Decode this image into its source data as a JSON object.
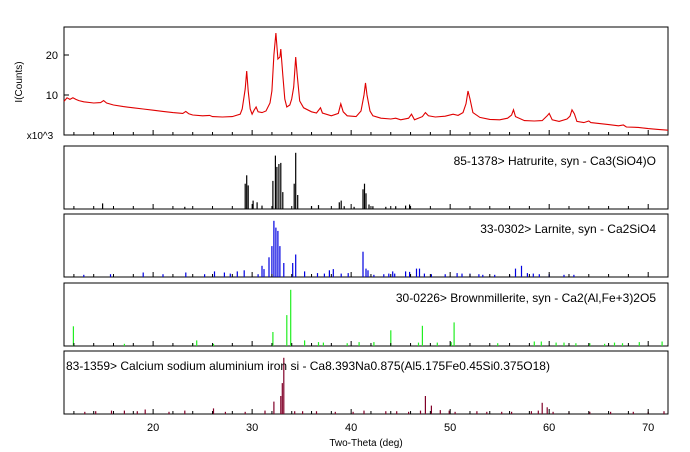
{
  "chart_data": {
    "type": "line",
    "xlabel": "Two-Theta (deg)",
    "ylabel": "I(Counts)",
    "y_multiplier": "x10^3",
    "xlim": [
      11,
      72
    ],
    "x_ticks": [
      20,
      30,
      40,
      50,
      60,
      70
    ],
    "y_ticks": [
      10,
      20
    ],
    "ylim": [
      0,
      27
    ],
    "pattern": {
      "color": "#e00000",
      "points": [
        [
          11.0,
          8.4
        ],
        [
          11.3,
          9.3
        ],
        [
          11.6,
          8.9
        ],
        [
          11.9,
          9.3
        ],
        [
          12.2,
          8.9
        ],
        [
          12.5,
          8.6
        ],
        [
          13.0,
          8.3
        ],
        [
          14.0,
          8.0
        ],
        [
          14.7,
          8.1
        ],
        [
          15.0,
          8.6
        ],
        [
          15.3,
          8.0
        ],
        [
          16.0,
          7.5
        ],
        [
          17.0,
          7.1
        ],
        [
          18.0,
          6.8
        ],
        [
          19.0,
          6.5
        ],
        [
          20.0,
          6.2
        ],
        [
          21.0,
          5.9
        ],
        [
          22.0,
          5.6
        ],
        [
          23.0,
          5.4
        ],
        [
          23.3,
          5.9
        ],
        [
          23.6,
          5.3
        ],
        [
          24.0,
          5.0
        ],
        [
          25.0,
          4.8
        ],
        [
          25.7,
          4.9
        ],
        [
          26.0,
          4.6
        ],
        [
          27.0,
          4.5
        ],
        [
          28.0,
          4.6
        ],
        [
          28.8,
          5.2
        ],
        [
          29.0,
          6.5
        ],
        [
          29.3,
          11.5
        ],
        [
          29.45,
          16.0
        ],
        [
          29.6,
          11.0
        ],
        [
          29.8,
          6.5
        ],
        [
          30.0,
          5.2
        ],
        [
          30.2,
          6.2
        ],
        [
          30.4,
          7.0
        ],
        [
          30.6,
          5.8
        ],
        [
          31.0,
          5.6
        ],
        [
          31.4,
          6.0
        ],
        [
          31.8,
          8.0
        ],
        [
          32.0,
          11.0
        ],
        [
          32.2,
          20.0
        ],
        [
          32.4,
          25.5
        ],
        [
          32.6,
          19.0
        ],
        [
          32.8,
          19.5
        ],
        [
          32.9,
          21.5
        ],
        [
          33.1,
          15.0
        ],
        [
          33.3,
          9.0
        ],
        [
          33.5,
          7.0
        ],
        [
          33.8,
          7.5
        ],
        [
          34.0,
          9.0
        ],
        [
          34.2,
          12.0
        ],
        [
          34.4,
          19.5
        ],
        [
          34.55,
          15.0
        ],
        [
          34.8,
          8.5
        ],
        [
          35.2,
          6.8
        ],
        [
          36.0,
          5.8
        ],
        [
          36.5,
          5.5
        ],
        [
          36.9,
          6.8
        ],
        [
          37.1,
          5.5
        ],
        [
          38.0,
          4.8
        ],
        [
          38.7,
          5.4
        ],
        [
          38.95,
          7.8
        ],
        [
          39.2,
          5.8
        ],
        [
          39.6,
          4.8
        ],
        [
          40.5,
          4.6
        ],
        [
          41.0,
          6.0
        ],
        [
          41.3,
          10.0
        ],
        [
          41.45,
          13.0
        ],
        [
          41.6,
          10.0
        ],
        [
          41.9,
          6.0
        ],
        [
          42.2,
          4.8
        ],
        [
          43.0,
          4.2
        ],
        [
          44.0,
          4.0
        ],
        [
          44.5,
          4.2
        ],
        [
          45.0,
          3.8
        ],
        [
          45.8,
          4.2
        ],
        [
          46.1,
          5.2
        ],
        [
          46.4,
          3.8
        ],
        [
          47.2,
          4.6
        ],
        [
          47.5,
          5.6
        ],
        [
          47.8,
          4.8
        ],
        [
          48.5,
          4.5
        ],
        [
          49.5,
          4.7
        ],
        [
          50.3,
          5.2
        ],
        [
          50.8,
          4.9
        ],
        [
          51.3,
          5.6
        ],
        [
          51.6,
          7.8
        ],
        [
          51.8,
          11.0
        ],
        [
          52.0,
          9.0
        ],
        [
          52.3,
          5.6
        ],
        [
          53.0,
          4.4
        ],
        [
          54.0,
          3.9
        ],
        [
          55.0,
          3.8
        ],
        [
          55.8,
          4.2
        ],
        [
          56.2,
          5.0
        ],
        [
          56.4,
          6.3
        ],
        [
          56.6,
          4.6
        ],
        [
          57.5,
          3.6
        ],
        [
          58.5,
          3.5
        ],
        [
          59.3,
          3.6
        ],
        [
          59.8,
          4.8
        ],
        [
          60.0,
          5.4
        ],
        [
          60.3,
          3.8
        ],
        [
          61.0,
          3.4
        ],
        [
          61.8,
          4.0
        ],
        [
          62.1,
          4.7
        ],
        [
          62.3,
          6.3
        ],
        [
          62.55,
          5.3
        ],
        [
          62.8,
          3.4
        ],
        [
          63.5,
          3.1
        ],
        [
          64.0,
          3.5
        ],
        [
          64.2,
          3.1
        ],
        [
          66.0,
          2.6
        ],
        [
          67.0,
          2.3
        ],
        [
          67.5,
          2.5
        ],
        [
          67.8,
          2.0
        ],
        [
          69.0,
          1.9
        ],
        [
          70.0,
          1.6
        ],
        [
          71.0,
          1.4
        ],
        [
          72.0,
          1.2
        ]
      ]
    },
    "references": [
      {
        "label": "85-1378> Hatrurite, syn - Ca3(SiO4)O",
        "color": "#000000",
        "ylim": [
          0,
          1.05
        ],
        "sticks": [
          [
            14.9,
            0.1
          ],
          [
            23.2,
            0.04
          ],
          [
            29.3,
            0.45
          ],
          [
            29.45,
            0.6
          ],
          [
            29.6,
            0.42
          ],
          [
            30.1,
            0.15
          ],
          [
            30.5,
            0.12
          ],
          [
            31.0,
            0.06
          ],
          [
            32.1,
            0.5
          ],
          [
            32.35,
            0.95
          ],
          [
            32.5,
            0.75
          ],
          [
            32.7,
            0.8
          ],
          [
            32.9,
            0.82
          ],
          [
            33.1,
            0.3
          ],
          [
            34.25,
            0.45
          ],
          [
            34.4,
            1.0
          ],
          [
            34.6,
            0.25
          ],
          [
            36.0,
            0.05
          ],
          [
            36.7,
            0.07
          ],
          [
            38.8,
            0.12
          ],
          [
            39.0,
            0.15
          ],
          [
            39.3,
            0.05
          ],
          [
            40.3,
            0.04
          ],
          [
            41.2,
            0.35
          ],
          [
            41.35,
            0.45
          ],
          [
            41.5,
            0.28
          ],
          [
            41.8,
            0.08
          ],
          [
            42.2,
            0.05
          ],
          [
            43.5,
            0.04
          ],
          [
            44.5,
            0.05
          ],
          [
            45.5,
            0.06
          ],
          [
            45.9,
            0.08
          ]
        ]
      },
      {
        "label": "33-0302> Larnite, syn - Ca2SiO4",
        "color": "#0000e0",
        "ylim": [
          0,
          1.05
        ],
        "sticks": [
          [
            13.0,
            0.04
          ],
          [
            15.7,
            0.05
          ],
          [
            19.0,
            0.08
          ],
          [
            21.0,
            0.05
          ],
          [
            23.3,
            0.08
          ],
          [
            25.2,
            0.05
          ],
          [
            26.2,
            0.1
          ],
          [
            27.2,
            0.08
          ],
          [
            27.8,
            0.06
          ],
          [
            28.5,
            0.1
          ],
          [
            29.2,
            0.12
          ],
          [
            30.6,
            0.05
          ],
          [
            31.0,
            0.2
          ],
          [
            31.2,
            0.14
          ],
          [
            31.7,
            0.35
          ],
          [
            32.0,
            0.55
          ],
          [
            32.2,
            1.0
          ],
          [
            32.4,
            0.88
          ],
          [
            32.6,
            0.82
          ],
          [
            32.8,
            0.55
          ],
          [
            33.2,
            0.25
          ],
          [
            34.1,
            0.25
          ],
          [
            34.4,
            0.4
          ],
          [
            35.3,
            0.1
          ],
          [
            36.6,
            0.07
          ],
          [
            37.3,
            0.06
          ],
          [
            37.8,
            0.12
          ],
          [
            38.2,
            0.14
          ],
          [
            39.0,
            0.06
          ],
          [
            39.7,
            0.07
          ],
          [
            41.2,
            0.45
          ],
          [
            41.5,
            0.15
          ],
          [
            41.7,
            0.12
          ],
          [
            42.3,
            0.04
          ],
          [
            43.3,
            0.05
          ],
          [
            43.8,
            0.06
          ],
          [
            44.2,
            0.1
          ],
          [
            44.4,
            0.06
          ],
          [
            45.5,
            0.1
          ],
          [
            45.9,
            0.09
          ],
          [
            46.6,
            0.15
          ],
          [
            46.9,
            0.15
          ],
          [
            47.4,
            0.06
          ],
          [
            48.1,
            0.05
          ],
          [
            49.5,
            0.05
          ],
          [
            50.7,
            0.07
          ],
          [
            51.2,
            0.06
          ],
          [
            52.0,
            0.06
          ],
          [
            52.9,
            0.05
          ],
          [
            53.3,
            0.04
          ],
          [
            54.5,
            0.04
          ],
          [
            56.0,
            0.04
          ],
          [
            56.6,
            0.15
          ],
          [
            57.2,
            0.2
          ],
          [
            57.8,
            0.07
          ],
          [
            58.4,
            0.06
          ],
          [
            59.0,
            0.05
          ],
          [
            60.0,
            0.05
          ],
          [
            61.5,
            0.04
          ],
          [
            62.5,
            0.04
          ]
        ]
      },
      {
        "label": "30-0226> Brownmillerite, syn - Ca2(Al,Fe+3)2O5",
        "color": "#22ee22",
        "ylim": [
          0,
          1.05
        ],
        "sticks": [
          [
            11.95,
            0.35
          ],
          [
            17.1,
            0.04
          ],
          [
            24.0,
            0.05
          ],
          [
            24.4,
            0.1
          ],
          [
            26.1,
            0.04
          ],
          [
            32.1,
            0.25
          ],
          [
            33.5,
            0.55
          ],
          [
            33.9,
            1.0
          ],
          [
            35.3,
            0.1
          ],
          [
            36.7,
            0.07
          ],
          [
            37.2,
            0.06
          ],
          [
            39.6,
            0.05
          ],
          [
            40.8,
            0.07
          ],
          [
            42.3,
            0.07
          ],
          [
            44.0,
            0.28
          ],
          [
            46.8,
            0.06
          ],
          [
            47.2,
            0.36
          ],
          [
            48.7,
            0.06
          ],
          [
            50.1,
            0.07
          ],
          [
            50.4,
            0.42
          ],
          [
            54.8,
            0.05
          ],
          [
            58.5,
            0.08
          ],
          [
            59.2,
            0.08
          ],
          [
            60.7,
            0.06
          ],
          [
            61.5,
            0.06
          ],
          [
            62.7,
            0.05
          ],
          [
            64.1,
            0.05
          ],
          [
            65.6,
            0.04
          ],
          [
            66.6,
            0.06
          ],
          [
            67.4,
            0.05
          ],
          [
            69.1,
            0.07
          ],
          [
            71.4,
            0.08
          ]
        ]
      },
      {
        "label": "83-1359> Calcium sodium aluminium iron si - Ca8.393Na0.875(Al5.175Fe0.45Si0.375O18)",
        "color": "#800028",
        "ylim": [
          0,
          1.05
        ],
        "sticks": [
          [
            13.1,
            0.04
          ],
          [
            14.2,
            0.05
          ],
          [
            15.8,
            0.06
          ],
          [
            17.1,
            0.06
          ],
          [
            18.4,
            0.05
          ],
          [
            19.2,
            0.08
          ],
          [
            21.6,
            0.04
          ],
          [
            23.2,
            0.06
          ],
          [
            26.1,
            0.1
          ],
          [
            27.3,
            0.04
          ],
          [
            29.3,
            0.04
          ],
          [
            31.3,
            0.06
          ],
          [
            32.2,
            0.22
          ],
          [
            32.9,
            0.32
          ],
          [
            33.05,
            0.55
          ],
          [
            33.2,
            1.0
          ],
          [
            34.3,
            0.05
          ],
          [
            35.1,
            0.05
          ],
          [
            36.5,
            0.05
          ],
          [
            38.4,
            0.04
          ],
          [
            40.2,
            0.04
          ],
          [
            41.3,
            0.06
          ],
          [
            43.5,
            0.05
          ],
          [
            44.6,
            0.05
          ],
          [
            45.8,
            0.04
          ],
          [
            47.0,
            0.06
          ],
          [
            47.5,
            0.32
          ],
          [
            48.1,
            0.15
          ],
          [
            49.0,
            0.07
          ],
          [
            49.9,
            0.06
          ],
          [
            50.5,
            0.04
          ],
          [
            52.7,
            0.05
          ],
          [
            53.7,
            0.04
          ],
          [
            55.2,
            0.04
          ],
          [
            56.2,
            0.04
          ],
          [
            58.2,
            0.05
          ],
          [
            58.9,
            0.06
          ],
          [
            59.3,
            0.2
          ],
          [
            59.8,
            0.12
          ],
          [
            60.4,
            0.04
          ],
          [
            62.0,
            0.04
          ],
          [
            64.1,
            0.04
          ],
          [
            66.2,
            0.04
          ],
          [
            68.5,
            0.04
          ],
          [
            70.0,
            0.04
          ],
          [
            71.6,
            0.05
          ]
        ]
      }
    ]
  }
}
